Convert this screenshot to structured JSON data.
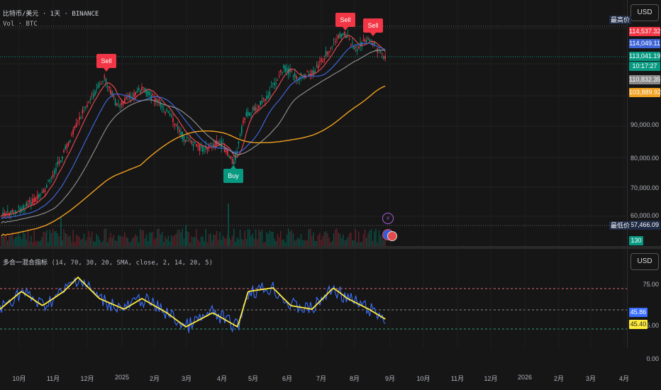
{
  "header": {
    "symbol_line": "比特币/美元 · 1天 · BINANCE",
    "volume_line": "Vol · BTC",
    "currency": "USD"
  },
  "price_axis": {
    "top_label": "最高价",
    "bottom_label": "最低价",
    "ticks": [
      "90,000.00",
      "80,000.00",
      "70,000.00",
      "60,000.00"
    ],
    "tags": {
      "high": "114,537.32",
      "ema_blue": "114,049.11",
      "last": "113,041.19",
      "countdown": "10:17:27",
      "sma_gray": "110,832.35",
      "sma_orange": "103,889.92",
      "low": "57,466.09",
      "volume": "130"
    }
  },
  "oscillator": {
    "name": "多合一混合指标",
    "params": "(14, 70, 30, 20, SMA, close, 2, 14, 20, 5)",
    "currency": "USD",
    "ticks": [
      "75.00",
      "25.00",
      "0.00"
    ],
    "tag_blue": "45.86",
    "tag_yellow": "45.40"
  },
  "time_axis": {
    "labels": [
      "10月",
      "11月",
      "12月",
      "2025",
      "2月",
      "3月",
      "4月",
      "5月",
      "6月",
      "7月",
      "8月",
      "9月",
      "10月",
      "11月",
      "12月",
      "2026",
      "2月",
      "3月",
      "4月"
    ]
  },
  "signals": {
    "sell": "Sell",
    "buy": "Buy"
  },
  "colors": {
    "up": "#089981",
    "down": "#f23645",
    "ema_red": "#e0474f",
    "ema_blue": "#3f64d6",
    "sma_gray": "#8a8a8a",
    "sma_orange": "#f0a020",
    "osc_blue": "#3b6fff",
    "osc_yellow": "#ffeb3b"
  }
}
